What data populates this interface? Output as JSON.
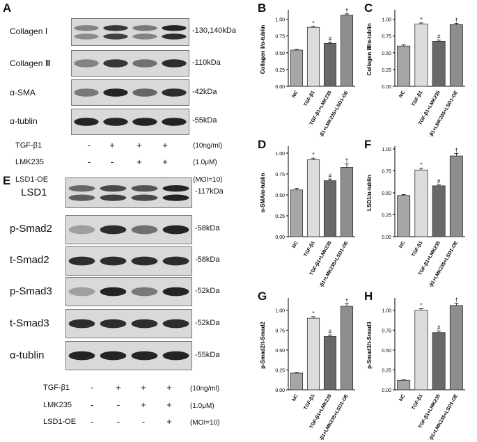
{
  "panel_labels": {
    "A": "A",
    "B": "B",
    "C": "C",
    "D": "D",
    "E": "E",
    "F": "F",
    "G": "G",
    "H": "H"
  },
  "blot_A": {
    "proteins": [
      {
        "name": "Collagen Ⅰ",
        "kda": "-130,140kDa",
        "lanes": [
          [
            0.45,
            0.4
          ],
          [
            0.85,
            0.8
          ],
          [
            0.5,
            0.45
          ],
          [
            0.95,
            0.9
          ]
        ],
        "double": true
      },
      {
        "name": "Collagen Ⅲ",
        "kda": "-110kDa",
        "lanes": [
          [
            0.45
          ],
          [
            0.85
          ],
          [
            0.55
          ],
          [
            0.9
          ]
        ],
        "double": false
      },
      {
        "name": "α-SMA",
        "kda": "-42kDa",
        "lanes": [
          [
            0.5
          ],
          [
            0.95
          ],
          [
            0.6
          ],
          [
            0.9
          ]
        ],
        "double": false
      },
      {
        "name": "α-tublin",
        "kda": "-55kDa",
        "lanes": [
          [
            0.95
          ],
          [
            0.95
          ],
          [
            0.95
          ],
          [
            0.95
          ]
        ],
        "double": false
      }
    ],
    "treatments": [
      {
        "name": "TGF-β1",
        "signs": [
          "-",
          "+",
          "+",
          "+"
        ],
        "cond": "(10ng/ml)"
      },
      {
        "name": "LMK235",
        "signs": [
          "-",
          "-",
          "+",
          "+"
        ],
        "cond": "(1.0μM)"
      },
      {
        "name": "LSD1-OE",
        "signs": [
          "-",
          "-",
          "-",
          "+"
        ],
        "cond": "(MOI=10)"
      }
    ]
  },
  "blot_E": {
    "proteins": [
      {
        "name": "LSD1",
        "kda": "-117kDa",
        "lanes": [
          [
            0.6,
            0.65
          ],
          [
            0.75,
            0.8
          ],
          [
            0.7,
            0.75
          ],
          [
            0.95,
            0.95
          ]
        ],
        "double": true
      },
      {
        "name": "p-Smad2",
        "kda": "-58kDa",
        "lanes": [
          [
            0.3
          ],
          [
            0.9
          ],
          [
            0.55
          ],
          [
            0.95
          ]
        ],
        "double": false
      },
      {
        "name": "t-Smad2",
        "kda": "-58kDa",
        "lanes": [
          [
            0.9
          ],
          [
            0.9
          ],
          [
            0.9
          ],
          [
            0.9
          ]
        ],
        "double": false
      },
      {
        "name": "p-Smad3",
        "kda": "-52kDa",
        "lanes": [
          [
            0.3
          ],
          [
            0.95
          ],
          [
            0.5
          ],
          [
            0.95
          ]
        ],
        "double": false
      },
      {
        "name": "t-Smad3",
        "kda": "-52kDa",
        "lanes": [
          [
            0.9
          ],
          [
            0.9
          ],
          [
            0.9
          ],
          [
            0.9
          ]
        ],
        "double": false
      },
      {
        "name": "α-tublin",
        "kda": "-55kDa",
        "lanes": [
          [
            0.95
          ],
          [
            0.95
          ],
          [
            0.95
          ],
          [
            0.95
          ]
        ],
        "double": false
      }
    ],
    "treatments": [
      {
        "name": "TGF-β1",
        "signs": [
          "-",
          "+",
          "+",
          "+"
        ],
        "cond": "(10ng/ml)"
      },
      {
        "name": "LMK235",
        "signs": [
          "-",
          "-",
          "+",
          "+"
        ],
        "cond": "(1.0μM)"
      },
      {
        "name": "LSD1-OE",
        "signs": [
          "-",
          "-",
          "-",
          "+"
        ],
        "cond": "(MOI=10)"
      }
    ]
  },
  "chart_data": [
    {
      "panel": "B",
      "type": "bar",
      "categories": [
        "NC",
        "TGF-β1",
        "TGF-β1+LMK235",
        "TGF-β1+LMK235+LSD1-OE"
      ],
      "values": [
        0.54,
        0.88,
        0.64,
        1.06
      ],
      "errors": [
        0.01,
        0.015,
        0.02,
        0.02
      ],
      "annotations": [
        "",
        "*",
        "#",
        "†"
      ],
      "ylabel": "Collagen Ⅰ/α-tublin",
      "ylim": [
        0,
        1.1
      ],
      "ticks": [
        "0.00",
        "0.25",
        "0.50",
        "0.75",
        "1.00"
      ]
    },
    {
      "panel": "C",
      "type": "bar",
      "categories": [
        "NC",
        "TGF-β1",
        "TGF-β1+LMK235",
        "TGF-β1+LMK235+LSD1-OE"
      ],
      "values": [
        0.6,
        0.93,
        0.67,
        0.92
      ],
      "errors": [
        0.02,
        0.015,
        0.02,
        0.02
      ],
      "annotations": [
        "",
        "*",
        "#",
        "†"
      ],
      "ylabel": "Collagen Ⅲ/α-tublin",
      "ylim": [
        0,
        1.1
      ],
      "ticks": [
        "0.00",
        "0.25",
        "0.50",
        "0.75",
        "1.00"
      ]
    },
    {
      "panel": "D",
      "type": "bar",
      "categories": [
        "NC",
        "TGF-β1",
        "TGF-β1+LMK235",
        "TGF-β1+LMK235+LSD1-OE"
      ],
      "values": [
        0.56,
        0.92,
        0.67,
        0.83
      ],
      "errors": [
        0.02,
        0.02,
        0.02,
        0.04
      ],
      "annotations": [
        "",
        "*",
        "#",
        "†"
      ],
      "ylabel": "α-SMA/α-tublin",
      "ylim": [
        0,
        1.05
      ],
      "ticks": [
        "0.00",
        "0.25",
        "0.50",
        "0.75",
        "1.00"
      ]
    },
    {
      "panel": "F",
      "type": "bar",
      "categories": [
        "NC",
        "TGF-β1",
        "TGF-β1+LMK235",
        "TGF-β1+LMK235+LSD1-OE"
      ],
      "values": [
        0.47,
        0.76,
        0.58,
        0.92
      ],
      "errors": [
        0.01,
        0.02,
        0.01,
        0.03
      ],
      "annotations": [
        "",
        "*",
        "#",
        "†"
      ],
      "ylabel": "LSD1/α-tublin",
      "ylim": [
        0,
        1.0
      ],
      "ticks": [
        "0.00",
        "0.25",
        "0.50",
        "0.75",
        "1.00"
      ]
    },
    {
      "panel": "G",
      "type": "bar",
      "categories": [
        "NC",
        "TGF-β1",
        "TGF-β1+LMK235",
        "TGF-β1+LMK235+LSD1-OE"
      ],
      "values": [
        0.21,
        0.9,
        0.67,
        1.05
      ],
      "errors": [
        0.005,
        0.02,
        0.02,
        0.03
      ],
      "annotations": [
        "",
        "*",
        "#",
        "†"
      ],
      "ylabel": "p-Smad2/t-Smad2",
      "ylim": [
        0,
        1.12
      ],
      "ticks": [
        "0.00",
        "0.25",
        "0.50",
        "0.75",
        "1.00"
      ]
    },
    {
      "panel": "H",
      "type": "bar",
      "categories": [
        "NC",
        "TGF-β1",
        "TGF-β1+LMK235",
        "TGF-β1+LMK235+LSD1-OE"
      ],
      "values": [
        0.12,
        1.0,
        0.72,
        1.06
      ],
      "errors": [
        0.005,
        0.02,
        0.02,
        0.03
      ],
      "annotations": [
        "",
        "*",
        "#",
        "†"
      ],
      "ylabel": "p-Smad3/t-Smad3",
      "ylim": [
        0,
        1.12
      ],
      "ticks": [
        "0.00",
        "0.25",
        "0.50",
        "0.75",
        "1.00"
      ]
    }
  ],
  "colors": {
    "bars": [
      "#a6a6a6",
      "#dcdcdc",
      "#686868",
      "#8e8e8e"
    ],
    "blot_bg": "#d9d9d9",
    "band": "#1a1a1a"
  }
}
